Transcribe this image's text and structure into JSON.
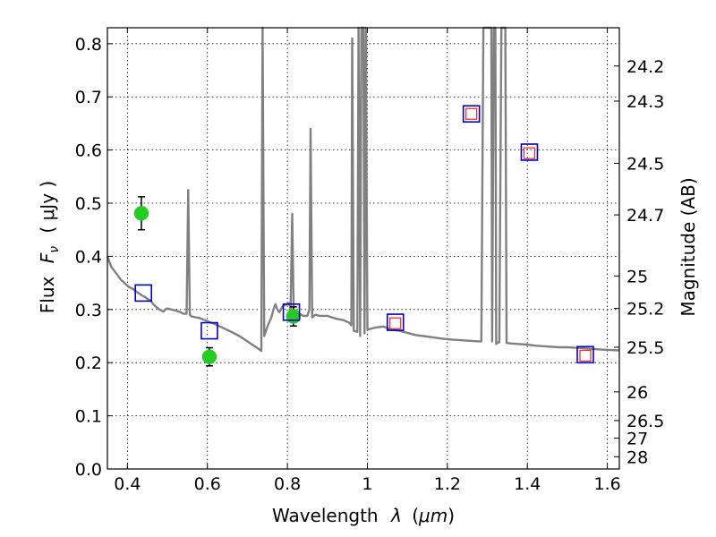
{
  "chart_data": {
    "type": "scatter",
    "xlabel_prefix": "Wavelength",
    "xlabel_symbol": "λ",
    "xlabel_unit_open": "(",
    "xlabel_unit": "μm",
    "xlabel_unit_close": ")",
    "ylabel_prefix": "Flux",
    "ylabel_symbol": "F",
    "ylabel_sub": "ν",
    "ylabel_unit": "( μJy )",
    "y2label": "Magnitude (AB)",
    "xlim": [
      0.35,
      1.63
    ],
    "ylim": [
      0.0,
      0.83
    ],
    "grid": true,
    "xticks": [
      {
        "value": 0.4,
        "label": "0.4"
      },
      {
        "value": 0.6,
        "label": "0.6"
      },
      {
        "value": 0.8,
        "label": "0.8"
      },
      {
        "value": 1.0,
        "label": "1"
      },
      {
        "value": 1.2,
        "label": "1.2"
      },
      {
        "value": 1.4,
        "label": "1.4"
      },
      {
        "value": 1.6,
        "label": "1.6"
      }
    ],
    "yticks": [
      {
        "value": 0.0,
        "label": "0.0"
      },
      {
        "value": 0.1,
        "label": "0.1"
      },
      {
        "value": 0.2,
        "label": "0.2"
      },
      {
        "value": 0.3,
        "label": "0.3"
      },
      {
        "value": 0.4,
        "label": "0.4"
      },
      {
        "value": 0.5,
        "label": "0.5"
      },
      {
        "value": 0.6,
        "label": "0.6"
      },
      {
        "value": 0.7,
        "label": "0.7"
      },
      {
        "value": 0.8,
        "label": "0.8"
      }
    ],
    "y2ticks": [
      {
        "flux": 0.758,
        "label": "24.2"
      },
      {
        "flux": 0.692,
        "label": "24.3"
      },
      {
        "flux": 0.575,
        "label": "24.5"
      },
      {
        "flux": 0.478,
        "label": "24.7"
      },
      {
        "flux": 0.363,
        "label": "25"
      },
      {
        "flux": 0.302,
        "label": "25.2"
      },
      {
        "flux": 0.229,
        "label": "25.5"
      },
      {
        "flux": 0.145,
        "label": "26"
      },
      {
        "flux": 0.091,
        "label": "26.5"
      },
      {
        "flux": 0.058,
        "label": "27"
      },
      {
        "flux": 0.023,
        "label": "28"
      }
    ],
    "series": [
      {
        "kind": "spectrum",
        "color": "#808080",
        "points": [
          [
            0.35,
            0.4
          ],
          [
            0.355,
            0.39
          ],
          [
            0.36,
            0.38
          ],
          [
            0.365,
            0.375
          ],
          [
            0.37,
            0.37
          ],
          [
            0.375,
            0.365
          ],
          [
            0.38,
            0.36
          ],
          [
            0.385,
            0.355
          ],
          [
            0.39,
            0.352
          ],
          [
            0.395,
            0.348
          ],
          [
            0.4,
            0.345
          ],
          [
            0.405,
            0.342
          ],
          [
            0.41,
            0.34
          ],
          [
            0.415,
            0.338
          ],
          [
            0.42,
            0.335
          ],
          [
            0.425,
            0.332
          ],
          [
            0.43,
            0.33
          ],
          [
            0.435,
            0.327
          ],
          [
            0.44,
            0.325
          ],
          [
            0.445,
            0.323
          ],
          [
            0.45,
            0.32
          ],
          [
            0.455,
            0.318
          ],
          [
            0.46,
            0.315
          ],
          [
            0.465,
            0.31
          ],
          [
            0.47,
            0.306
          ],
          [
            0.475,
            0.303
          ],
          [
            0.48,
            0.3
          ],
          [
            0.485,
            0.298
          ],
          [
            0.49,
            0.296
          ],
          [
            0.495,
            0.3
          ],
          [
            0.5,
            0.302
          ],
          [
            0.51,
            0.3
          ],
          [
            0.52,
            0.298
          ],
          [
            0.53,
            0.296
          ],
          [
            0.54,
            0.292
          ],
          [
            0.548,
            0.292
          ],
          [
            0.552,
            0.525
          ],
          [
            0.556,
            0.29
          ],
          [
            0.56,
            0.287
          ],
          [
            0.58,
            0.284
          ],
          [
            0.6,
            0.278
          ],
          [
            0.62,
            0.272
          ],
          [
            0.64,
            0.265
          ],
          [
            0.66,
            0.258
          ],
          [
            0.68,
            0.25
          ],
          [
            0.7,
            0.24
          ],
          [
            0.72,
            0.23
          ],
          [
            0.73,
            0.225
          ],
          [
            0.735,
            0.222
          ],
          [
            0.738,
            0.83
          ],
          [
            0.742,
            0.25
          ],
          [
            0.75,
            0.268
          ],
          [
            0.76,
            0.285
          ],
          [
            0.765,
            0.3
          ],
          [
            0.77,
            0.31
          ],
          [
            0.775,
            0.3
          ],
          [
            0.78,
            0.295
          ],
          [
            0.785,
            0.302
          ],
          [
            0.79,
            0.308
          ],
          [
            0.8,
            0.31
          ],
          [
            0.805,
            0.312
          ],
          [
            0.808,
            0.3
          ],
          [
            0.812,
            0.48
          ],
          [
            0.816,
            0.29
          ],
          [
            0.82,
            0.298
          ],
          [
            0.83,
            0.292
          ],
          [
            0.84,
            0.288
          ],
          [
            0.85,
            0.288
          ],
          [
            0.855,
            0.3
          ],
          [
            0.858,
            0.64
          ],
          [
            0.862,
            0.285
          ],
          [
            0.87,
            0.29
          ],
          [
            0.88,
            0.288
          ],
          [
            0.9,
            0.288
          ],
          [
            0.92,
            0.283
          ],
          [
            0.94,
            0.28
          ],
          [
            0.955,
            0.275
          ],
          [
            0.96,
            0.27
          ],
          [
            0.962,
            0.81
          ],
          [
            0.966,
            0.26
          ],
          [
            0.975,
            0.258
          ],
          [
            0.978,
            0.83
          ],
          [
            0.982,
            0.25
          ],
          [
            0.985,
            0.83
          ],
          [
            0.988,
            0.83
          ],
          [
            0.99,
            0.83
          ],
          [
            0.993,
            0.255
          ],
          [
            0.996,
            0.83
          ],
          [
            1.0,
            0.262
          ],
          [
            1.02,
            0.266
          ],
          [
            1.04,
            0.268
          ],
          [
            1.06,
            0.262
          ],
          [
            1.08,
            0.26
          ],
          [
            1.1,
            0.256
          ],
          [
            1.12,
            0.252
          ],
          [
            1.14,
            0.25
          ],
          [
            1.16,
            0.248
          ],
          [
            1.18,
            0.246
          ],
          [
            1.2,
            0.244
          ],
          [
            1.22,
            0.243
          ],
          [
            1.24,
            0.242
          ],
          [
            1.26,
            0.241
          ],
          [
            1.28,
            0.24
          ],
          [
            1.285,
            0.24
          ],
          [
            1.29,
            0.83
          ],
          [
            1.3,
            0.83
          ],
          [
            1.31,
            0.83
          ],
          [
            1.312,
            0.24
          ],
          [
            1.316,
            0.83
          ],
          [
            1.32,
            0.83
          ],
          [
            1.322,
            0.235
          ],
          [
            1.326,
            0.238
          ],
          [
            1.33,
            0.238
          ],
          [
            1.335,
            0.83
          ],
          [
            1.345,
            0.83
          ],
          [
            1.348,
            0.237
          ],
          [
            1.36,
            0.236
          ],
          [
            1.38,
            0.235
          ],
          [
            1.4,
            0.234
          ],
          [
            1.42,
            0.232
          ],
          [
            1.44,
            0.231
          ],
          [
            1.46,
            0.23
          ],
          [
            1.48,
            0.229
          ],
          [
            1.5,
            0.229
          ],
          [
            1.52,
            0.228
          ],
          [
            1.54,
            0.227
          ],
          [
            1.56,
            0.226
          ],
          [
            1.58,
            0.225
          ],
          [
            1.6,
            0.224
          ],
          [
            1.63,
            0.223
          ]
        ]
      },
      {
        "kind": "observed",
        "color": "#22cc22",
        "points": [
          {
            "x": 0.435,
            "y": 0.481,
            "err": 0.031
          },
          {
            "x": 0.605,
            "y": 0.211,
            "err": 0.017
          },
          {
            "x": 0.815,
            "y": 0.287,
            "err": 0.018
          }
        ]
      },
      {
        "kind": "model",
        "color": "#0000cc",
        "points": [
          {
            "x": 0.44,
            "y": 0.331
          },
          {
            "x": 0.605,
            "y": 0.26
          },
          {
            "x": 0.81,
            "y": 0.295
          },
          {
            "x": 1.07,
            "y": 0.276
          },
          {
            "x": 1.26,
            "y": 0.668
          },
          {
            "x": 1.405,
            "y": 0.596
          },
          {
            "x": 1.545,
            "y": 0.215
          }
        ]
      },
      {
        "kind": "model-inner",
        "color": "#ff2222",
        "points": [
          {
            "x": 1.07,
            "y": 0.274
          },
          {
            "x": 1.26,
            "y": 0.668
          },
          {
            "x": 1.405,
            "y": 0.594
          },
          {
            "x": 1.545,
            "y": 0.213
          }
        ]
      }
    ]
  }
}
